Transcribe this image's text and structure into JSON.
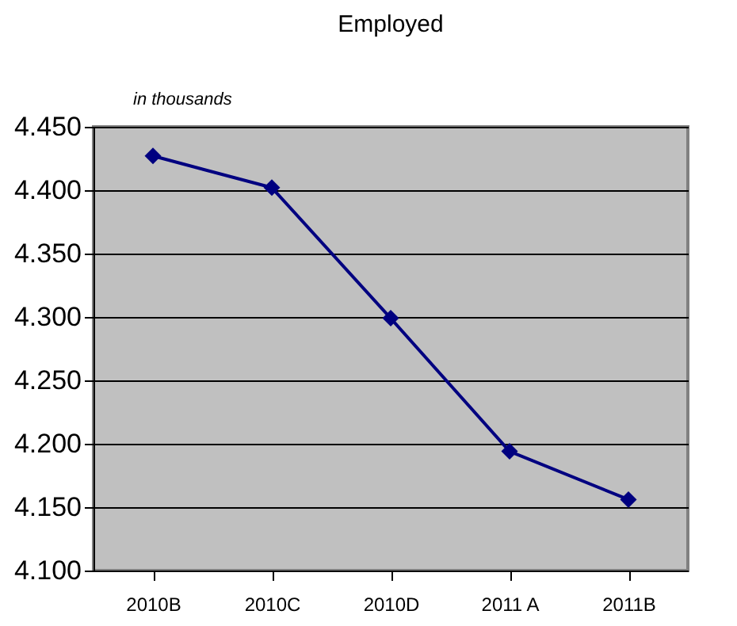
{
  "chart_data": {
    "type": "line",
    "title": "Employed",
    "subtitle": "in thousands",
    "categories": [
      "2010B",
      "2010C",
      "2010D",
      "2011 A",
      "2011B"
    ],
    "series": [
      {
        "color": "#000080",
        "values": [
          4.427,
          4.402,
          4.299,
          4.194,
          4.156
        ]
      }
    ],
    "ylim": [
      4.1,
      4.45
    ],
    "yticks": [
      {
        "value": 4.1,
        "label": "4.100"
      },
      {
        "value": 4.15,
        "label": "4.150"
      },
      {
        "value": 4.2,
        "label": "4.200"
      },
      {
        "value": 4.25,
        "label": "4.250"
      },
      {
        "value": 4.3,
        "label": "4.300"
      },
      {
        "value": 4.35,
        "label": "4.350"
      },
      {
        "value": 4.4,
        "label": "4.400"
      },
      {
        "value": 4.45,
        "label": "4.450"
      }
    ],
    "grid": "y",
    "marker": "diamond",
    "line_style": "solid",
    "legend": false
  }
}
